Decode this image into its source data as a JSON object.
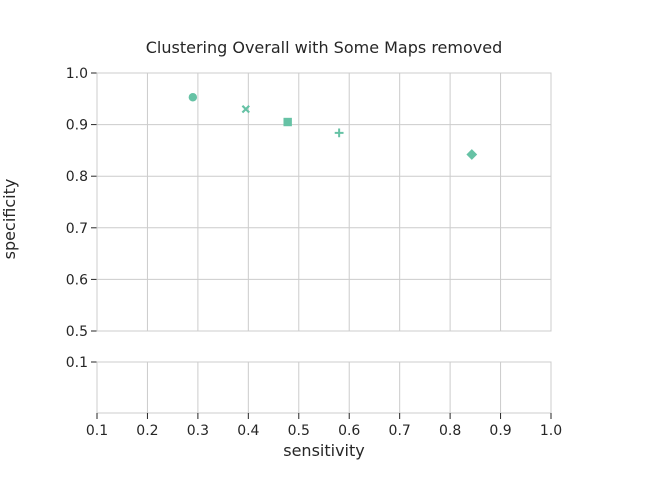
{
  "chart_data": {
    "type": "scatter",
    "title": "Clustering Overall with Some Maps removed",
    "xlabel": "sensitivity",
    "ylabel": "specificity",
    "xlim": [
      0.1,
      1.0
    ],
    "xticks": [
      "0.1",
      "0.2",
      "0.3",
      "0.4",
      "0.5",
      "0.6",
      "0.7",
      "0.8",
      "0.9",
      "1.0"
    ],
    "broken_y_axis": true,
    "upper_panel": {
      "ylim": [
        0.5,
        1.0
      ],
      "yticks": [
        "0.5",
        "0.6",
        "0.7",
        "0.8",
        "0.9",
        "1.0"
      ]
    },
    "lower_panel": {
      "ylim": [
        0.0,
        0.1
      ],
      "yticks": [
        "0.1"
      ]
    },
    "grid": true,
    "legend": "none",
    "color": "#66c2a5",
    "points": [
      {
        "x": 0.29,
        "y": 0.953,
        "marker": "circle"
      },
      {
        "x": 0.395,
        "y": 0.93,
        "marker": "x"
      },
      {
        "x": 0.478,
        "y": 0.905,
        "marker": "square"
      },
      {
        "x": 0.58,
        "y": 0.884,
        "marker": "plus"
      },
      {
        "x": 0.843,
        "y": 0.842,
        "marker": "diamond"
      }
    ]
  }
}
